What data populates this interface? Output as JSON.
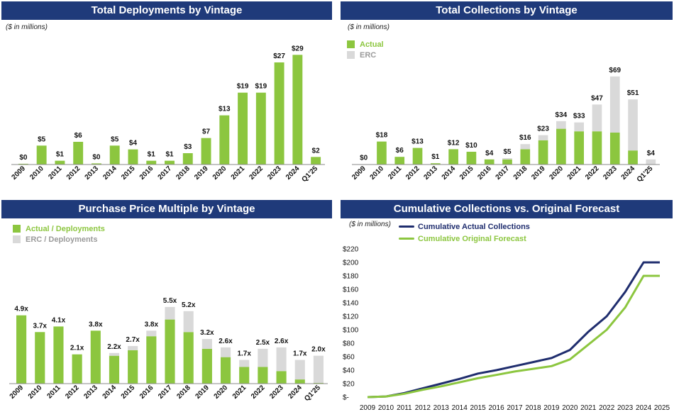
{
  "colors": {
    "title_bg": "#1f3a7a",
    "actual": "#8cc63f",
    "erc": "#d9d9d9",
    "navy": "#1f2d6e",
    "axis": "#8a8a8a",
    "text": "#111111"
  },
  "chart_data": [
    {
      "type": "bar",
      "title": "Total Deployments by Vintage",
      "unit_note": "($ in millions)",
      "categories": [
        "2009",
        "2010",
        "2011",
        "2012",
        "2013",
        "2014",
        "2015",
        "2016",
        "2017",
        "2018",
        "2019",
        "2020",
        "2021",
        "2022",
        "2023",
        "2024",
        "Q1'25"
      ],
      "values": [
        0.2,
        5,
        1,
        6,
        0.3,
        5,
        4,
        1,
        1,
        3,
        7,
        13,
        19,
        19,
        27,
        29,
        2
      ],
      "labels": [
        "$0",
        "$5",
        "$1",
        "$6",
        "$0",
        "$5",
        "$4",
        "$1",
        "$1",
        "$3",
        "$7",
        "$13",
        "$19",
        "$19",
        "$27",
        "$29",
        "$2"
      ],
      "ylim": [
        0,
        30
      ]
    },
    {
      "type": "bar",
      "stacked": true,
      "title": "Total Collections by Vintage",
      "unit_note": "($ in millions)",
      "legend": [
        "Actual",
        "ERC"
      ],
      "categories": [
        "2009",
        "2010",
        "2011",
        "2012",
        "2013",
        "2014",
        "2015",
        "2016",
        "2017",
        "2018",
        "2019",
        "2020",
        "2021",
        "2022",
        "2023",
        "2024",
        "Q1'25"
      ],
      "series": [
        {
          "name": "Actual",
          "values": [
            0.2,
            18,
            6,
            13,
            1,
            12,
            10,
            4,
            4,
            12,
            19,
            28,
            26,
            26,
            25,
            11,
            0.3
          ]
        },
        {
          "name": "ERC",
          "values": [
            0,
            0,
            0,
            0,
            0,
            0,
            0,
            0,
            1,
            4,
            4,
            6,
            7,
            21,
            44,
            40,
            3.7
          ]
        }
      ],
      "labels": [
        "$0",
        "$18",
        "$6",
        "$13",
        "$1",
        "$12",
        "$10",
        "$4",
        "$5",
        "$16",
        "$23",
        "$34",
        "$33",
        "$47",
        "$69",
        "$51",
        "$4"
      ],
      "ylim": [
        0,
        75
      ]
    },
    {
      "type": "bar",
      "stacked": true,
      "title": "Purchase Price Multiple by Vintage",
      "legend": [
        "Actual / Deployments",
        "ERC / Deployments"
      ],
      "categories": [
        "2009",
        "2010",
        "2011",
        "2012",
        "2013",
        "2014",
        "2015",
        "2016",
        "2017",
        "2018",
        "2019",
        "2020",
        "2021",
        "2022",
        "2023",
        "2024",
        "Q1'25"
      ],
      "series": [
        {
          "name": "Actual / Deployments",
          "values": [
            4.9,
            3.7,
            4.1,
            2.1,
            3.8,
            2.0,
            2.4,
            3.4,
            4.6,
            3.7,
            2.5,
            1.9,
            1.2,
            1.2,
            0.9,
            0.3,
            0.05
          ]
        },
        {
          "name": "ERC / Deployments",
          "values": [
            0,
            0,
            0,
            0,
            0,
            0.2,
            0.3,
            0.4,
            0.9,
            1.5,
            0.7,
            0.7,
            0.5,
            1.3,
            1.7,
            1.4,
            1.95
          ]
        }
      ],
      "labels": [
        "4.9x",
        "3.7x",
        "4.1x",
        "2.1x",
        "3.8x",
        "2.2x",
        "2.7x",
        "3.8x",
        "5.5x",
        "5.2x",
        "3.2x",
        "2.6x",
        "1.7x",
        "2.5x",
        "2.6x",
        "1.7x",
        "2.0x"
      ],
      "ylim": [
        0,
        5.8
      ]
    },
    {
      "type": "line",
      "title": "Cumulative Collections vs. Original Forecast",
      "unit_note": "($ in millions)",
      "x": [
        "2009",
        "2010",
        "2011",
        "2012",
        "2013",
        "2014",
        "2015",
        "2016",
        "2017",
        "2018",
        "2019",
        "2020",
        "2021",
        "2022",
        "2023",
        "2024",
        "2025"
      ],
      "yticks": [
        "$-",
        "$20",
        "$40",
        "$60",
        "$80",
        "$100",
        "$120",
        "$140",
        "$160",
        "$180",
        "$200",
        "$220"
      ],
      "ylim": [
        0,
        220
      ],
      "series": [
        {
          "name": "Cumulative Actual Collections",
          "values": [
            0,
            1,
            6,
            13,
            20,
            27,
            35,
            40,
            46,
            52,
            58,
            70,
            97,
            120,
            156,
            200,
            200
          ]
        },
        {
          "name": "Cumulative Original Forecast",
          "values": [
            0,
            1,
            5,
            11,
            16,
            22,
            28,
            33,
            38,
            42,
            46,
            56,
            78,
            100,
            133,
            180,
            180
          ]
        }
      ]
    }
  ]
}
